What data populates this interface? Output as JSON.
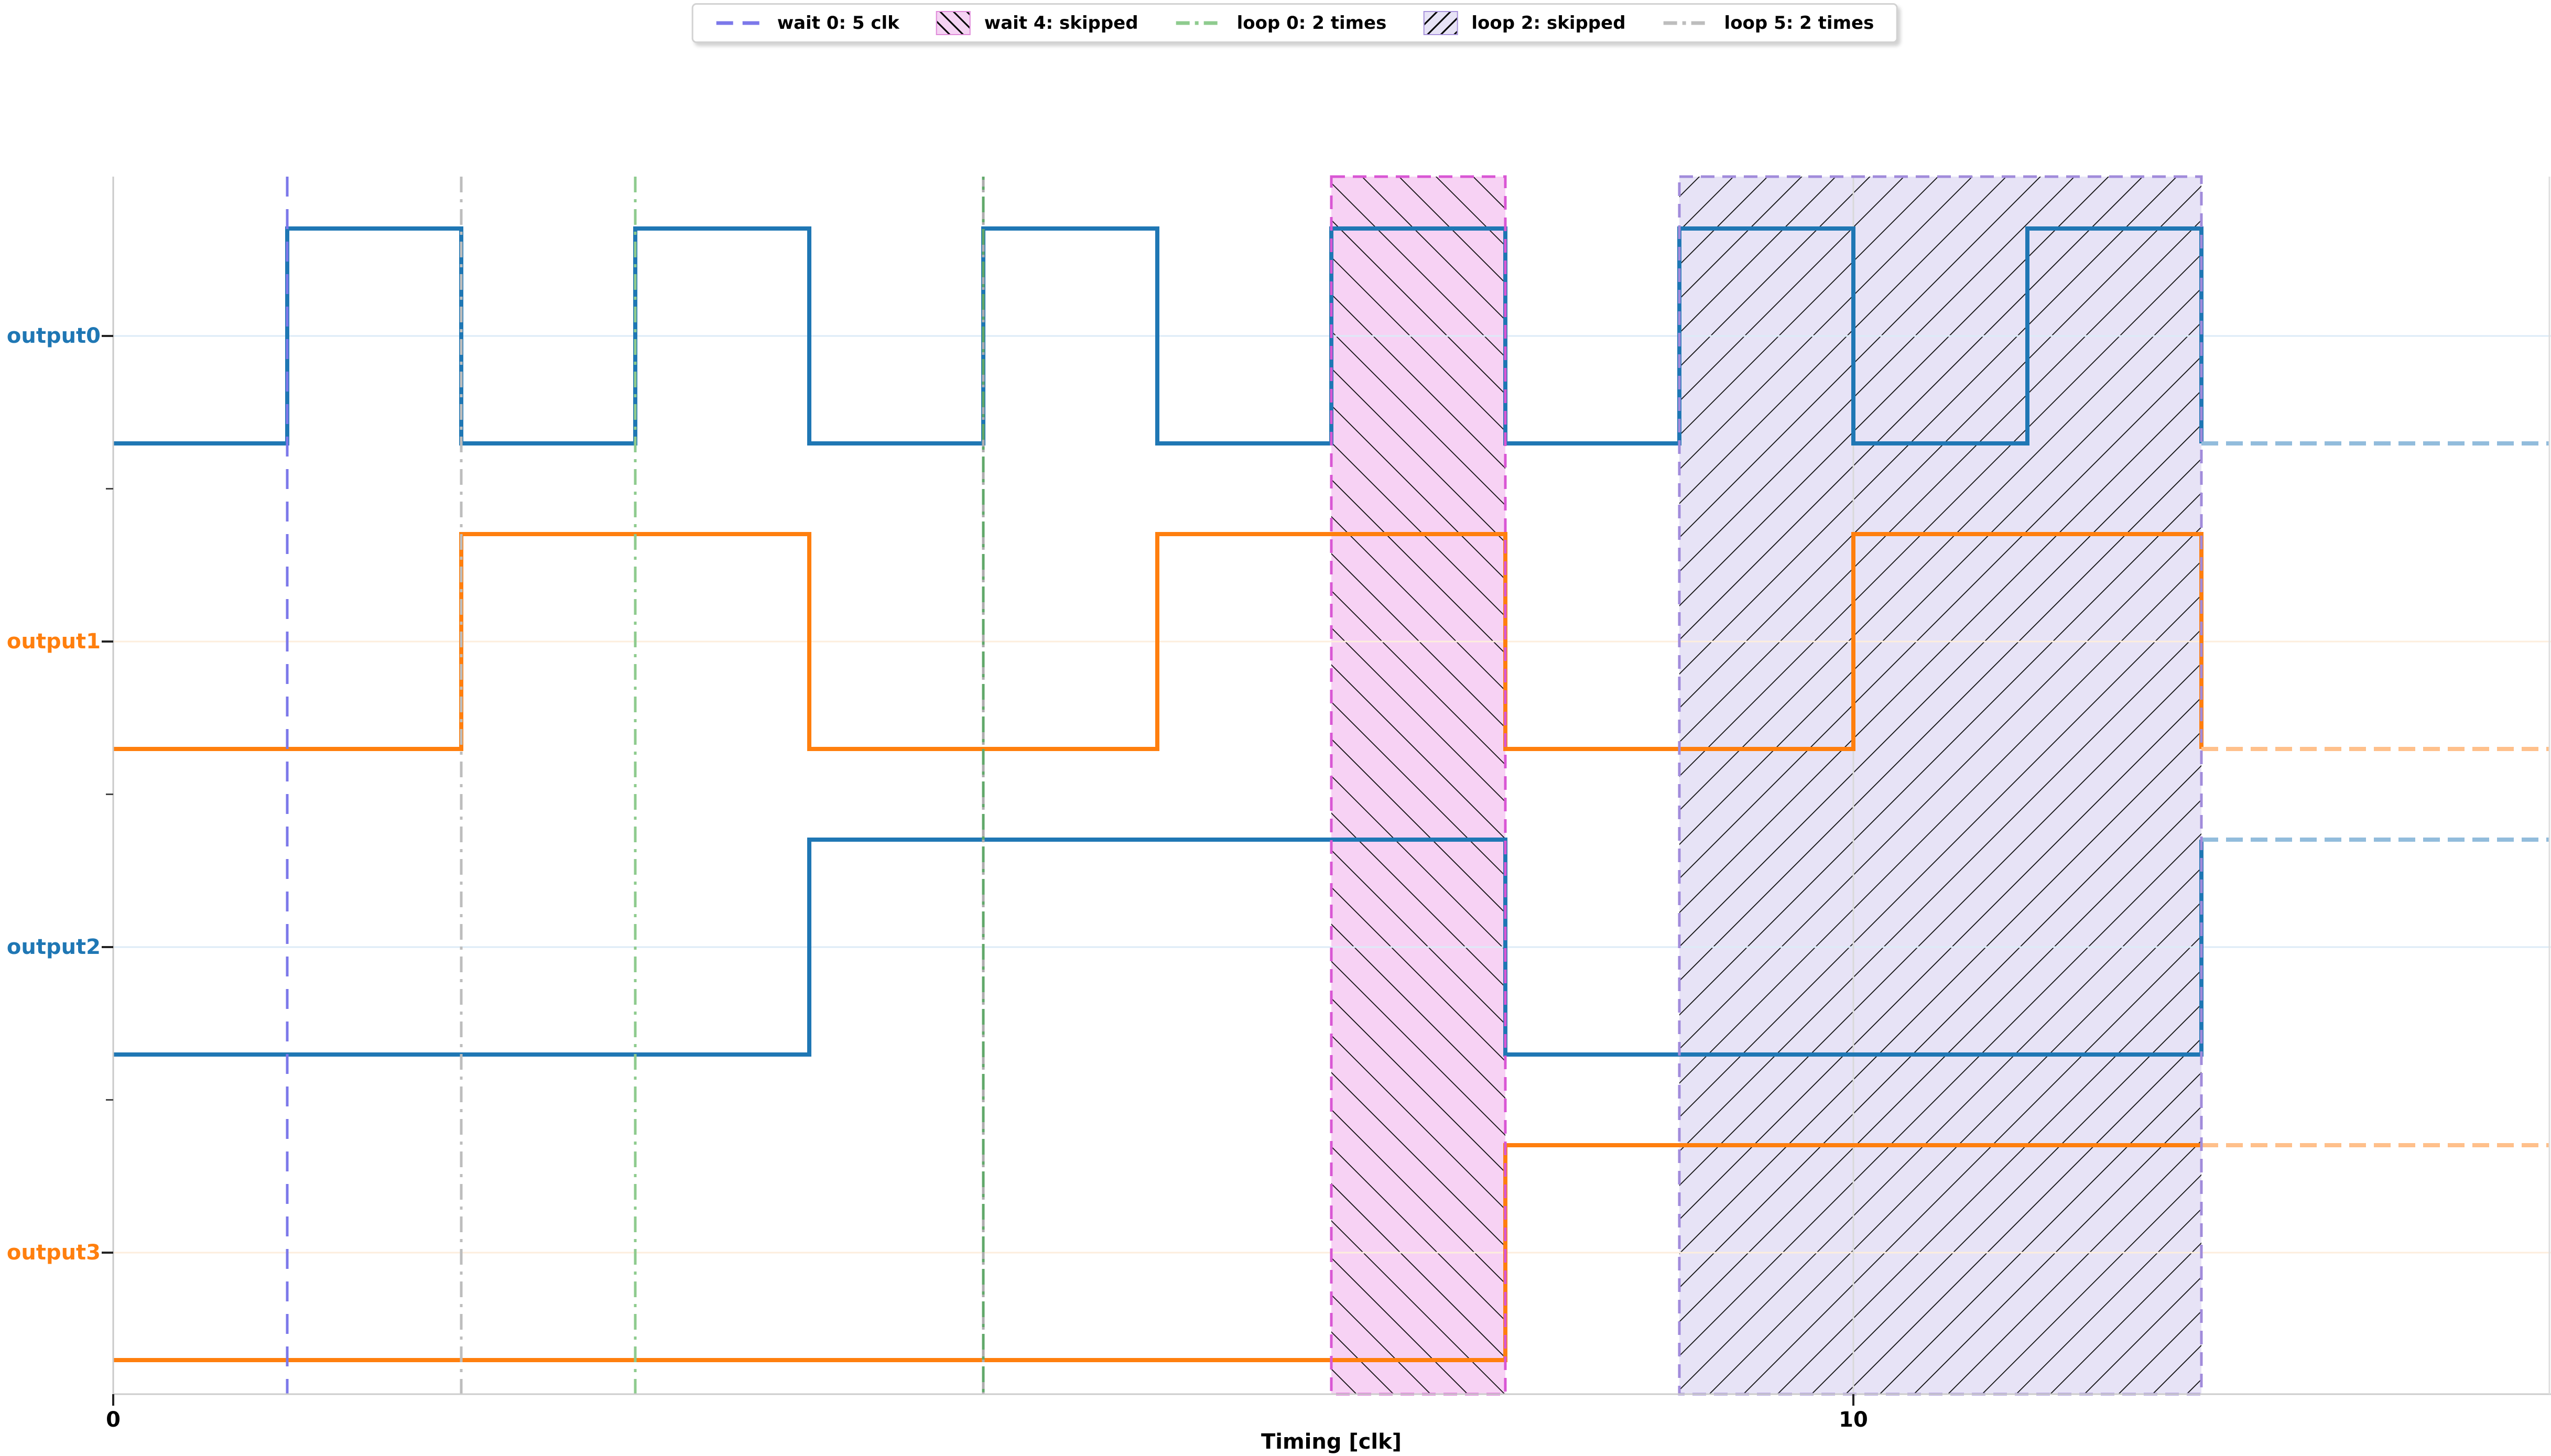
{
  "legend": {
    "items": [
      {
        "label": "wait 0: 5 clk",
        "swatch": "line",
        "line_style": "dashed",
        "color": "#7c78ea"
      },
      {
        "label": "wait 4: skipped",
        "swatch": "patch",
        "hatch": "backslash",
        "fill": "#f5d3f3",
        "edge_color": "#e08ad9"
      },
      {
        "label": "loop 0: 2 times",
        "swatch": "line",
        "line_style": "dashdot",
        "color": "#8ecb8e"
      },
      {
        "label": "loop 2: skipped",
        "swatch": "patch",
        "hatch": "slash",
        "fill": "#e7e3f6",
        "edge_color": "#a893dc"
      },
      {
        "label": "loop 5: 2 times",
        "swatch": "line",
        "line_style": "dashdot",
        "color": "#bdbdbd"
      }
    ]
  },
  "chart_data": {
    "type": "digital-timing-diagram",
    "xlabel": "Timing [clk]",
    "x_unit": "clk",
    "xlim": [
      0,
      14
    ],
    "xticks": [
      0,
      10
    ],
    "xtick_labels": [
      "0",
      "10"
    ],
    "solid_end_clk": 12,
    "signals": [
      {
        "name": "output0",
        "color": "#1f77b4",
        "tail_color": "#92bcdc",
        "grid_color": "#dcebf7",
        "initial_level": 0,
        "toggle_clks": [
          1,
          2,
          3,
          4,
          5,
          6,
          7,
          8,
          9,
          10,
          11,
          12
        ],
        "final_level": 0
      },
      {
        "name": "output1",
        "color": "#ff7f0e",
        "tail_color": "#ffc08b",
        "grid_color": "#fdeedd",
        "initial_level": 0,
        "toggle_clks": [
          2,
          4,
          6,
          8,
          10,
          12
        ],
        "final_level": 0
      },
      {
        "name": "output2",
        "color": "#1f77b4",
        "tail_color": "#92bcdc",
        "grid_color": "#dcebf7",
        "initial_level": 0,
        "toggle_clks": [
          4,
          8,
          12
        ],
        "final_level": 1
      },
      {
        "name": "output3",
        "color": "#ff7f0e",
        "tail_color": "#ffc08b",
        "grid_color": "#fdeedd",
        "initial_level": 0,
        "toggle_clks": [
          8
        ],
        "final_level": 1
      }
    ],
    "markers": [
      {
        "label": "wait 0: 5 clk",
        "clk": 1,
        "color": "#7c78ea",
        "dash": "dashed"
      },
      {
        "label": "loop 5: 2 times",
        "clk": 2,
        "color": "#bdbdbd",
        "dash": "dashdot"
      },
      {
        "label": "loop 0: 2 times",
        "clk": 3,
        "color": "#8ecb8e",
        "dash": "dashdot"
      },
      {
        "label": "loop 5: 2 times",
        "clk": 5,
        "color": "#adadad",
        "dash": "dashdot"
      },
      {
        "label": "loop 0: 2 times",
        "clk": 5,
        "color": "#61a86a",
        "dash": "dashdot",
        "dash_offset": 24
      }
    ],
    "regions": [
      {
        "label": "wait 4: skipped",
        "start_clk": 7,
        "end_clk": 8,
        "fill": "#f7d2f4",
        "hatch": "backslash",
        "edge_color": "#d957d4"
      },
      {
        "label": "loop 2: skipped",
        "start_clk": 9,
        "end_clk": 12,
        "fill": "#e7e3f6",
        "hatch": "slash",
        "edge_color": "#a18bdb"
      }
    ]
  }
}
